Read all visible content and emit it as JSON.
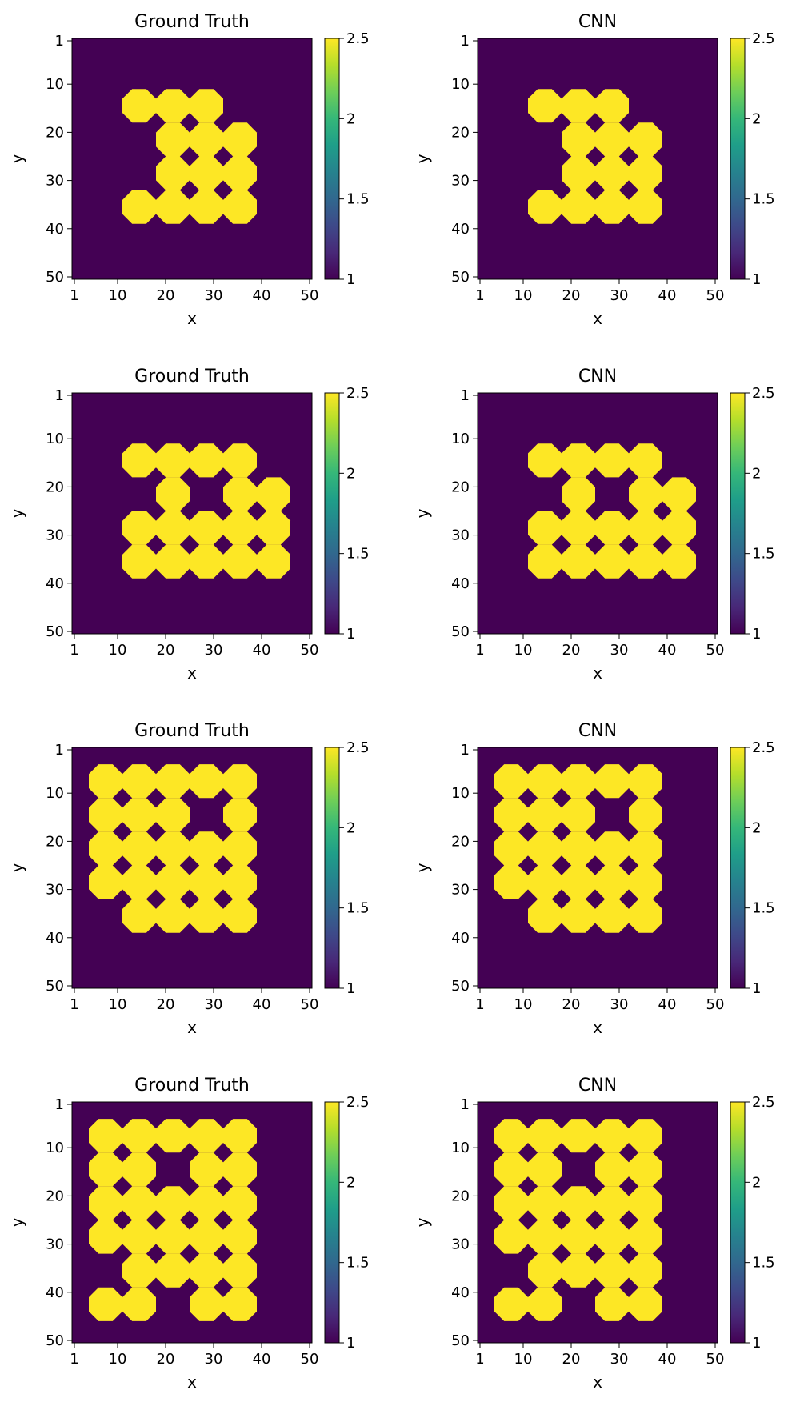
{
  "chart_data": [
    {
      "type": "heatmap",
      "title": "Ground Truth",
      "xlabel": "x",
      "ylabel": "y",
      "xlim": [
        1,
        50
      ],
      "ylim": [
        1,
        50
      ],
      "y_inverted": true,
      "xticks": [
        1,
        10,
        20,
        30,
        40,
        50
      ],
      "yticks": [
        1,
        10,
        20,
        30,
        40,
        50
      ],
      "grid": false,
      "colorbar": {
        "min": 1,
        "max": 2.5,
        "ticks": [
          1,
          1.5,
          2,
          2.5
        ],
        "tick_labels": [
          "1",
          "1.5",
          "2",
          "2.5"
        ]
      },
      "background_value": 1,
      "blob_value": 2.5,
      "blob_radius": 3.5,
      "blob_centers": [
        [
          14.5,
          14.5
        ],
        [
          21.5,
          14.5
        ],
        [
          28.5,
          14.5
        ],
        [
          21.5,
          21.5
        ],
        [
          28.5,
          21.5
        ],
        [
          35.5,
          21.5
        ],
        [
          21.5,
          28.5
        ],
        [
          28.5,
          28.5
        ],
        [
          35.5,
          28.5
        ],
        [
          14.5,
          35.5
        ],
        [
          21.5,
          35.5
        ],
        [
          28.5,
          35.5
        ],
        [
          35.5,
          35.5
        ]
      ]
    },
    {
      "type": "heatmap",
      "title": "CNN",
      "xlabel": "x",
      "ylabel": "y",
      "xlim": [
        1,
        50
      ],
      "ylim": [
        1,
        50
      ],
      "y_inverted": true,
      "xticks": [
        1,
        10,
        20,
        30,
        40,
        50
      ],
      "yticks": [
        1,
        10,
        20,
        30,
        40,
        50
      ],
      "grid": false,
      "colorbar": {
        "min": 1,
        "max": 2.5,
        "ticks": [
          1,
          1.5,
          2,
          2.5
        ],
        "tick_labels": [
          "1",
          "1.5",
          "2",
          "2.5"
        ]
      },
      "background_value": 1,
      "blob_value": 2.5,
      "blob_radius": 3.5,
      "blob_centers": [
        [
          14.5,
          14.5
        ],
        [
          21.5,
          14.5
        ],
        [
          28.5,
          14.5
        ],
        [
          21.5,
          21.5
        ],
        [
          28.5,
          21.5
        ],
        [
          35.5,
          21.5
        ],
        [
          21.5,
          28.5
        ],
        [
          28.5,
          28.5
        ],
        [
          35.5,
          28.5
        ],
        [
          14.5,
          35.5
        ],
        [
          21.5,
          35.5
        ],
        [
          28.5,
          35.5
        ],
        [
          35.5,
          35.5
        ]
      ]
    },
    {
      "type": "heatmap",
      "title": "Ground Truth",
      "xlabel": "x",
      "ylabel": "y",
      "xlim": [
        1,
        50
      ],
      "ylim": [
        1,
        50
      ],
      "y_inverted": true,
      "xticks": [
        1,
        10,
        20,
        30,
        40,
        50
      ],
      "yticks": [
        1,
        10,
        20,
        30,
        40,
        50
      ],
      "grid": false,
      "colorbar": {
        "min": 1,
        "max": 2.5,
        "ticks": [
          1,
          1.5,
          2,
          2.5
        ],
        "tick_labels": [
          "1",
          "1.5",
          "2",
          "2.5"
        ]
      },
      "background_value": 1,
      "blob_value": 2.5,
      "blob_radius": 3.5,
      "blob_centers": [
        [
          14.5,
          14.5
        ],
        [
          21.5,
          14.5
        ],
        [
          28.5,
          14.5
        ],
        [
          35.5,
          14.5
        ],
        [
          21.5,
          21.5
        ],
        [
          35.5,
          21.5
        ],
        [
          42.5,
          21.5
        ],
        [
          14.5,
          28.5
        ],
        [
          21.5,
          28.5
        ],
        [
          28.5,
          28.5
        ],
        [
          35.5,
          28.5
        ],
        [
          42.5,
          28.5
        ],
        [
          14.5,
          35.5
        ],
        [
          21.5,
          35.5
        ],
        [
          28.5,
          35.5
        ],
        [
          35.5,
          35.5
        ],
        [
          42.5,
          35.5
        ]
      ]
    },
    {
      "type": "heatmap",
      "title": "CNN",
      "xlabel": "x",
      "ylabel": "y",
      "xlim": [
        1,
        50
      ],
      "ylim": [
        1,
        50
      ],
      "y_inverted": true,
      "xticks": [
        1,
        10,
        20,
        30,
        40,
        50
      ],
      "yticks": [
        1,
        10,
        20,
        30,
        40,
        50
      ],
      "grid": false,
      "colorbar": {
        "min": 1,
        "max": 2.5,
        "ticks": [
          1,
          1.5,
          2,
          2.5
        ],
        "tick_labels": [
          "1",
          "1.5",
          "2",
          "2.5"
        ]
      },
      "background_value": 1,
      "blob_value": 2.5,
      "blob_radius": 3.5,
      "blob_centers": [
        [
          14.5,
          14.5
        ],
        [
          21.5,
          14.5
        ],
        [
          28.5,
          14.5
        ],
        [
          35.5,
          14.5
        ],
        [
          21.5,
          21.5
        ],
        [
          35.5,
          21.5
        ],
        [
          42.5,
          21.5
        ],
        [
          14.5,
          28.5
        ],
        [
          21.5,
          28.5
        ],
        [
          28.5,
          28.5
        ],
        [
          35.5,
          28.5
        ],
        [
          42.5,
          28.5
        ],
        [
          14.5,
          35.5
        ],
        [
          21.5,
          35.5
        ],
        [
          28.5,
          35.5
        ],
        [
          35.5,
          35.5
        ],
        [
          42.5,
          35.5
        ]
      ]
    },
    {
      "type": "heatmap",
      "title": "Ground Truth",
      "xlabel": "x",
      "ylabel": "y",
      "xlim": [
        1,
        50
      ],
      "ylim": [
        1,
        50
      ],
      "y_inverted": true,
      "xticks": [
        1,
        10,
        20,
        30,
        40,
        50
      ],
      "yticks": [
        1,
        10,
        20,
        30,
        40,
        50
      ],
      "grid": false,
      "colorbar": {
        "min": 1,
        "max": 2.5,
        "ticks": [
          1,
          1.5,
          2,
          2.5
        ],
        "tick_labels": [
          "1",
          "1.5",
          "2",
          "2.5"
        ]
      },
      "background_value": 1,
      "blob_value": 2.5,
      "blob_radius": 3.5,
      "blob_centers": [
        [
          7.5,
          7.5
        ],
        [
          14.5,
          7.5
        ],
        [
          21.5,
          7.5
        ],
        [
          28.5,
          7.5
        ],
        [
          35.5,
          7.5
        ],
        [
          7.5,
          14.5
        ],
        [
          14.5,
          14.5
        ],
        [
          21.5,
          14.5
        ],
        [
          35.5,
          14.5
        ],
        [
          7.5,
          21.5
        ],
        [
          14.5,
          21.5
        ],
        [
          21.5,
          21.5
        ],
        [
          28.5,
          21.5
        ],
        [
          35.5,
          21.5
        ],
        [
          7.5,
          28.5
        ],
        [
          14.5,
          28.5
        ],
        [
          21.5,
          28.5
        ],
        [
          28.5,
          28.5
        ],
        [
          35.5,
          28.5
        ],
        [
          14.5,
          35.5
        ],
        [
          21.5,
          35.5
        ],
        [
          28.5,
          35.5
        ],
        [
          35.5,
          35.5
        ]
      ]
    },
    {
      "type": "heatmap",
      "title": "CNN",
      "xlabel": "x",
      "ylabel": "y",
      "xlim": [
        1,
        50
      ],
      "ylim": [
        1,
        50
      ],
      "y_inverted": true,
      "xticks": [
        1,
        10,
        20,
        30,
        40,
        50
      ],
      "yticks": [
        1,
        10,
        20,
        30,
        40,
        50
      ],
      "grid": false,
      "colorbar": {
        "min": 1,
        "max": 2.5,
        "ticks": [
          1,
          1.5,
          2,
          2.5
        ],
        "tick_labels": [
          "1",
          "1.5",
          "2",
          "2.5"
        ]
      },
      "background_value": 1,
      "blob_value": 2.5,
      "blob_radius": 3.5,
      "blob_centers": [
        [
          7.5,
          7.5
        ],
        [
          14.5,
          7.5
        ],
        [
          21.5,
          7.5
        ],
        [
          28.5,
          7.5
        ],
        [
          35.5,
          7.5
        ],
        [
          7.5,
          14.5
        ],
        [
          14.5,
          14.5
        ],
        [
          21.5,
          14.5
        ],
        [
          35.5,
          14.5
        ],
        [
          7.5,
          21.5
        ],
        [
          14.5,
          21.5
        ],
        [
          21.5,
          21.5
        ],
        [
          28.5,
          21.5
        ],
        [
          35.5,
          21.5
        ],
        [
          7.5,
          28.5
        ],
        [
          14.5,
          28.5
        ],
        [
          21.5,
          28.5
        ],
        [
          28.5,
          28.5
        ],
        [
          35.5,
          28.5
        ],
        [
          14.5,
          35.5
        ],
        [
          21.5,
          35.5
        ],
        [
          28.5,
          35.5
        ],
        [
          35.5,
          35.5
        ]
      ]
    },
    {
      "type": "heatmap",
      "title": "Ground Truth",
      "xlabel": "x",
      "ylabel": "y",
      "xlim": [
        1,
        50
      ],
      "ylim": [
        1,
        50
      ],
      "y_inverted": true,
      "xticks": [
        1,
        10,
        20,
        30,
        40,
        50
      ],
      "yticks": [
        1,
        10,
        20,
        30,
        40,
        50
      ],
      "grid": false,
      "colorbar": {
        "min": 1,
        "max": 2.5,
        "ticks": [
          1,
          1.5,
          2,
          2.5
        ],
        "tick_labels": [
          "1",
          "1.5",
          "2",
          "2.5"
        ]
      },
      "background_value": 1,
      "blob_value": 2.5,
      "blob_radius": 3.5,
      "blob_centers": [
        [
          7.5,
          7.5
        ],
        [
          14.5,
          7.5
        ],
        [
          21.5,
          7.5
        ],
        [
          28.5,
          7.5
        ],
        [
          35.5,
          7.5
        ],
        [
          7.5,
          14.5
        ],
        [
          14.5,
          14.5
        ],
        [
          28.5,
          14.5
        ],
        [
          35.5,
          14.5
        ],
        [
          7.5,
          21.5
        ],
        [
          14.5,
          21.5
        ],
        [
          21.5,
          21.5
        ],
        [
          28.5,
          21.5
        ],
        [
          35.5,
          21.5
        ],
        [
          7.5,
          28.5
        ],
        [
          14.5,
          28.5
        ],
        [
          21.5,
          28.5
        ],
        [
          28.5,
          28.5
        ],
        [
          35.5,
          28.5
        ],
        [
          14.5,
          35.5
        ],
        [
          21.5,
          35.5
        ],
        [
          28.5,
          35.5
        ],
        [
          35.5,
          35.5
        ],
        [
          7.5,
          42.5
        ],
        [
          14.5,
          42.5
        ],
        [
          28.5,
          42.5
        ],
        [
          35.5,
          42.5
        ]
      ]
    },
    {
      "type": "heatmap",
      "title": "CNN",
      "xlabel": "x",
      "ylabel": "y",
      "xlim": [
        1,
        50
      ],
      "ylim": [
        1,
        50
      ],
      "y_inverted": true,
      "xticks": [
        1,
        10,
        20,
        30,
        40,
        50
      ],
      "yticks": [
        1,
        10,
        20,
        30,
        40,
        50
      ],
      "grid": false,
      "colorbar": {
        "min": 1,
        "max": 2.5,
        "ticks": [
          1,
          1.5,
          2,
          2.5
        ],
        "tick_labels": [
          "1",
          "1.5",
          "2",
          "2.5"
        ]
      },
      "background_value": 1,
      "blob_value": 2.5,
      "blob_radius": 3.5,
      "blob_centers": [
        [
          7.5,
          7.5
        ],
        [
          14.5,
          7.5
        ],
        [
          21.5,
          7.5
        ],
        [
          28.5,
          7.5
        ],
        [
          35.5,
          7.5
        ],
        [
          7.5,
          14.5
        ],
        [
          14.5,
          14.5
        ],
        [
          28.5,
          14.5
        ],
        [
          35.5,
          14.5
        ],
        [
          7.5,
          21.5
        ],
        [
          14.5,
          21.5
        ],
        [
          21.5,
          21.5
        ],
        [
          28.5,
          21.5
        ],
        [
          35.5,
          21.5
        ],
        [
          7.5,
          28.5
        ],
        [
          14.5,
          28.5
        ],
        [
          21.5,
          28.5
        ],
        [
          28.5,
          28.5
        ],
        [
          35.5,
          28.5
        ],
        [
          14.5,
          35.5
        ],
        [
          21.5,
          35.5
        ],
        [
          28.5,
          35.5
        ],
        [
          35.5,
          35.5
        ],
        [
          7.5,
          42.5
        ],
        [
          14.5,
          42.5
        ],
        [
          28.5,
          42.5
        ],
        [
          35.5,
          42.5
        ]
      ]
    }
  ],
  "colors": {
    "background": "#440154",
    "blob": "#fde725",
    "colormap": [
      "#440154",
      "#482878",
      "#3e4989",
      "#31688e",
      "#26828e",
      "#1f9e89",
      "#35b779",
      "#6ece58",
      "#b5de2b",
      "#fde725"
    ]
  }
}
